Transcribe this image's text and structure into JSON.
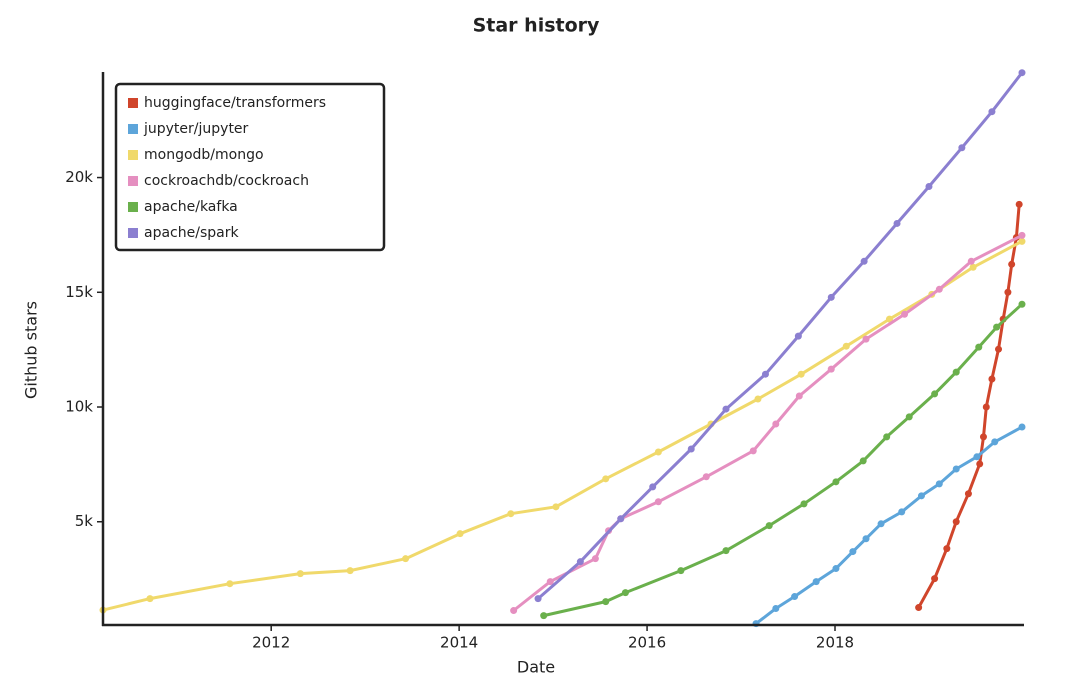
{
  "chart_data": {
    "type": "line",
    "title": "Star history",
    "x_label": "Date",
    "y_label": "Github stars",
    "xlim": [
      2010.21,
      2019.99
    ],
    "xticks": [
      2012,
      2014,
      2016,
      2018
    ],
    "ylim": [
      500,
      24600
    ],
    "yticks": [
      {
        "value": 5000,
        "label": "5k"
      },
      {
        "value": 10000,
        "label": "10k"
      },
      {
        "value": 15000,
        "label": "15k"
      },
      {
        "value": 20000,
        "label": "20k"
      }
    ],
    "legend": "upper left",
    "grid": false,
    "series": [
      {
        "name": "huggingface/transformers",
        "color": "#d0452b",
        "x": [
          2018.89,
          2019.06,
          2019.19,
          2019.29,
          2019.42,
          2019.54,
          2019.58,
          2019.61,
          2019.67,
          2019.74,
          2019.79,
          2019.84,
          2019.88,
          2019.93,
          2019.96
        ],
        "values": [
          1260,
          2520,
          3830,
          5000,
          6220,
          7520,
          8700,
          10000,
          11220,
          12520,
          13830,
          15000,
          16220,
          17390,
          18830
        ]
      },
      {
        "name": "jupyter/jupyter",
        "color": "#5da5da",
        "x": [
          2017.16,
          2017.37,
          2017.57,
          2017.8,
          2018.01,
          2018.19,
          2018.33,
          2018.49,
          2018.71,
          2018.92,
          2019.11,
          2019.29,
          2019.51,
          2019.7,
          2019.99
        ],
        "values": [
          560,
          1220,
          1740,
          2390,
          2960,
          3700,
          4260,
          4910,
          5430,
          6130,
          6650,
          7300,
          7830,
          8480,
          9130
        ]
      },
      {
        "name": "mongodb/mongo",
        "color": "#f0d96b",
        "x": [
          2010.21,
          2010.71,
          2011.56,
          2012.31,
          2012.84,
          2013.43,
          2014.01,
          2014.55,
          2015.03,
          2015.56,
          2016.12,
          2016.68,
          2017.18,
          2017.64,
          2018.12,
          2018.58,
          2019.03,
          2019.47,
          2019.99
        ],
        "values": [
          1150,
          1650,
          2300,
          2740,
          2870,
          3390,
          4480,
          5350,
          5650,
          6870,
          8040,
          9260,
          10350,
          11430,
          12650,
          13830,
          14910,
          16090,
          17220
        ]
      },
      {
        "name": "cockroachdb/cockroach",
        "color": "#e58fc0",
        "x": [
          2014.58,
          2014.97,
          2015.45,
          2015.59,
          2015.72,
          2016.12,
          2016.63,
          2017.13,
          2017.37,
          2017.62,
          2017.96,
          2018.33,
          2018.74,
          2019.11,
          2019.45,
          2019.99
        ],
        "values": [
          1130,
          2390,
          3390,
          4610,
          5130,
          5870,
          6960,
          8090,
          9260,
          10480,
          11650,
          12960,
          14040,
          15130,
          16350,
          17480
        ]
      },
      {
        "name": "apache/kafka",
        "color": "#6ab04c",
        "x": [
          2014.9,
          2015.56,
          2015.77,
          2016.36,
          2016.84,
          2017.3,
          2017.67,
          2018.01,
          2018.3,
          2018.55,
          2018.79,
          2019.06,
          2019.29,
          2019.53,
          2019.72,
          2019.99
        ],
        "values": [
          910,
          1520,
          1910,
          2870,
          3740,
          4830,
          5780,
          6740,
          7650,
          8700,
          9570,
          10570,
          11520,
          12610,
          13480,
          14480
        ]
      },
      {
        "name": "apache/spark",
        "color": "#8b7fd0",
        "x": [
          2014.84,
          2015.29,
          2015.72,
          2016.06,
          2016.47,
          2016.84,
          2017.26,
          2017.61,
          2017.96,
          2018.31,
          2018.66,
          2019.0,
          2019.35,
          2019.67,
          2019.99
        ],
        "values": [
          1650,
          3260,
          5130,
          6520,
          8170,
          9910,
          11430,
          13090,
          14780,
          16350,
          18000,
          19610,
          21300,
          22870,
          24570
        ]
      }
    ]
  }
}
